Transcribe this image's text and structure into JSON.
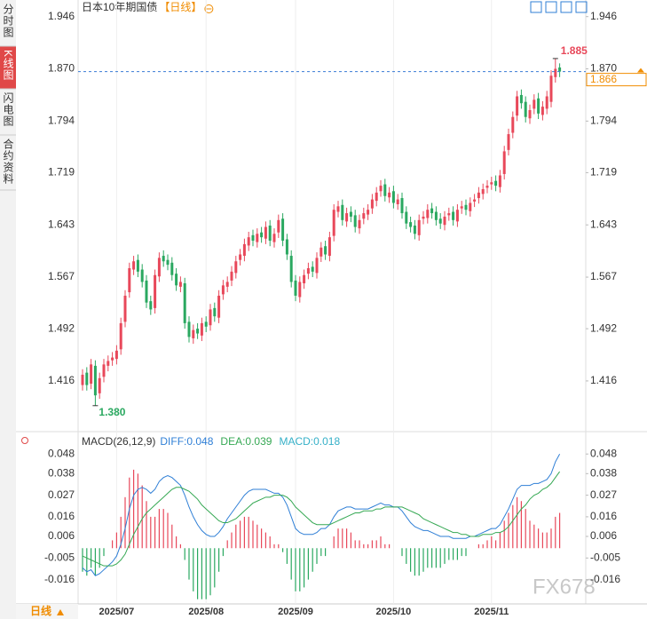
{
  "sidebar": {
    "tabs": [
      "分时图",
      "K线图",
      "闪电图",
      "合约资料"
    ]
  },
  "footer": {
    "period": "日线"
  },
  "watermark": "FX678",
  "chart_data": [
    {
      "type": "candlestick",
      "title": "日本10年期国债",
      "period": "【日线】",
      "categories": [
        null,
        null,
        null,
        null,
        null,
        null,
        null,
        null,
        "2025/07",
        null,
        null,
        null,
        null,
        null,
        null,
        null,
        null,
        null,
        null,
        null,
        null,
        null,
        null,
        null,
        null,
        null,
        null,
        null,
        null,
        "2025/08",
        null,
        null,
        null,
        null,
        null,
        null,
        null,
        null,
        null,
        null,
        null,
        null,
        null,
        null,
        null,
        null,
        null,
        null,
        null,
        null,
        "2025/09",
        null,
        null,
        null,
        null,
        null,
        null,
        null,
        null,
        null,
        null,
        null,
        null,
        null,
        null,
        null,
        null,
        null,
        null,
        null,
        null,
        null,
        null,
        "2025/10",
        null,
        null,
        null,
        null,
        null,
        null,
        null,
        null,
        null,
        null,
        null,
        null,
        null,
        null,
        null,
        null,
        null,
        null,
        null,
        null,
        null,
        null,
        "2025/11",
        null,
        null,
        null,
        null,
        null,
        null,
        null,
        null,
        null,
        null,
        null,
        null,
        null,
        null,
        null,
        null
      ],
      "open": [
        1.41,
        1.428,
        1.412,
        1.438,
        1.398,
        1.422,
        1.438,
        1.446,
        1.448,
        1.462,
        1.502,
        1.545,
        1.578,
        1.592,
        1.578,
        1.562,
        1.532,
        1.522,
        1.568,
        1.598,
        1.592,
        1.588,
        1.572,
        1.553,
        1.558,
        1.502,
        1.478,
        1.492,
        1.482,
        1.502,
        1.497,
        1.522,
        1.508,
        1.542,
        1.553,
        1.562,
        1.573,
        1.592,
        1.598,
        1.613,
        1.628,
        1.618,
        1.632,
        1.623,
        1.642,
        1.618,
        1.632,
        1.652,
        1.622,
        1.598,
        1.562,
        1.538,
        1.558,
        1.572,
        1.582,
        1.573,
        1.597,
        1.612,
        1.598,
        1.627,
        1.662,
        1.672,
        1.648,
        1.662,
        1.657,
        1.638,
        1.652,
        1.658,
        1.667,
        1.678,
        1.692,
        1.702,
        1.683,
        1.692,
        1.673,
        1.682,
        1.662,
        1.647,
        1.642,
        1.628,
        1.652,
        1.653,
        1.667,
        1.662,
        1.652,
        1.643,
        1.657,
        1.662,
        1.648,
        1.667,
        1.672,
        1.663,
        1.677,
        1.682,
        1.688,
        1.697,
        1.702,
        1.707,
        1.698,
        1.717,
        1.752,
        1.777,
        1.802,
        1.832,
        1.822,
        1.798,
        1.812,
        1.827,
        1.803,
        1.812,
        1.822,
        1.858,
        1.872
      ],
      "high": [
        1.433,
        1.436,
        1.448,
        1.446,
        1.428,
        1.448,
        1.453,
        1.458,
        1.468,
        1.508,
        1.548,
        1.588,
        1.598,
        1.6,
        1.586,
        1.57,
        1.54,
        1.578,
        1.603,
        1.606,
        1.6,
        1.596,
        1.58,
        1.568,
        1.566,
        1.51,
        1.498,
        1.5,
        1.508,
        1.51,
        1.528,
        1.53,
        1.548,
        1.563,
        1.568,
        1.583,
        1.598,
        1.608,
        1.623,
        1.633,
        1.636,
        1.638,
        1.64,
        1.648,
        1.65,
        1.638,
        1.658,
        1.66,
        1.63,
        1.606,
        1.57,
        1.568,
        1.578,
        1.588,
        1.59,
        1.603,
        1.618,
        1.62,
        1.633,
        1.673,
        1.678,
        1.68,
        1.668,
        1.67,
        1.665,
        1.658,
        1.668,
        1.673,
        1.688,
        1.698,
        1.708,
        1.71,
        1.698,
        1.7,
        1.688,
        1.69,
        1.67,
        1.655,
        1.65,
        1.658,
        1.663,
        1.673,
        1.675,
        1.67,
        1.66,
        1.663,
        1.668,
        1.67,
        1.673,
        1.678,
        1.68,
        1.683,
        1.688,
        1.698,
        1.703,
        1.708,
        1.713,
        1.715,
        1.723,
        1.758,
        1.783,
        1.808,
        1.838,
        1.84,
        1.83,
        1.818,
        1.833,
        1.835,
        1.823,
        1.838,
        1.868,
        1.885,
        1.878
      ],
      "low": [
        1.402,
        1.402,
        1.404,
        1.38,
        1.39,
        1.414,
        1.43,
        1.438,
        1.44,
        1.454,
        1.494,
        1.537,
        1.57,
        1.567,
        1.552,
        1.522,
        1.512,
        1.514,
        1.56,
        1.582,
        1.577,
        1.562,
        1.547,
        1.545,
        1.492,
        1.472,
        1.47,
        1.477,
        1.474,
        1.487,
        1.489,
        1.502,
        1.5,
        1.534,
        1.545,
        1.554,
        1.565,
        1.584,
        1.59,
        1.605,
        1.612,
        1.61,
        1.617,
        1.615,
        1.612,
        1.61,
        1.624,
        1.612,
        1.592,
        1.552,
        1.532,
        1.53,
        1.55,
        1.564,
        1.567,
        1.565,
        1.589,
        1.592,
        1.59,
        1.619,
        1.654,
        1.642,
        1.64,
        1.647,
        1.632,
        1.63,
        1.644,
        1.65,
        1.659,
        1.67,
        1.684,
        1.677,
        1.675,
        1.667,
        1.665,
        1.652,
        1.637,
        1.632,
        1.622,
        1.62,
        1.644,
        1.645,
        1.652,
        1.642,
        1.637,
        1.635,
        1.649,
        1.642,
        1.64,
        1.659,
        1.657,
        1.655,
        1.669,
        1.674,
        1.68,
        1.689,
        1.694,
        1.692,
        1.69,
        1.709,
        1.744,
        1.769,
        1.794,
        1.812,
        1.792,
        1.79,
        1.804,
        1.797,
        1.795,
        1.804,
        1.814,
        1.85,
        1.858
      ],
      "close": [
        1.425,
        1.41,
        1.44,
        1.395,
        1.42,
        1.44,
        1.445,
        1.45,
        1.46,
        1.5,
        1.54,
        1.58,
        1.59,
        1.575,
        1.56,
        1.53,
        1.52,
        1.57,
        1.595,
        1.59,
        1.585,
        1.57,
        1.555,
        1.56,
        1.5,
        1.48,
        1.49,
        1.485,
        1.5,
        1.495,
        1.52,
        1.51,
        1.54,
        1.555,
        1.56,
        1.575,
        1.59,
        1.6,
        1.615,
        1.625,
        1.62,
        1.63,
        1.625,
        1.64,
        1.62,
        1.63,
        1.65,
        1.62,
        1.6,
        1.56,
        1.54,
        1.56,
        1.57,
        1.58,
        1.575,
        1.595,
        1.61,
        1.6,
        1.625,
        1.665,
        1.67,
        1.65,
        1.66,
        1.655,
        1.64,
        1.65,
        1.66,
        1.665,
        1.68,
        1.69,
        1.7,
        1.685,
        1.69,
        1.675,
        1.68,
        1.66,
        1.645,
        1.64,
        1.63,
        1.65,
        1.655,
        1.665,
        1.66,
        1.65,
        1.645,
        1.655,
        1.66,
        1.65,
        1.665,
        1.67,
        1.665,
        1.675,
        1.68,
        1.69,
        1.695,
        1.7,
        1.705,
        1.7,
        1.715,
        1.75,
        1.775,
        1.8,
        1.83,
        1.82,
        1.8,
        1.81,
        1.825,
        1.805,
        1.815,
        1.83,
        1.86,
        1.87,
        1.866
      ],
      "up_color": "#e8485a",
      "down_color": "#2aa860",
      "ylim": [
        1.35,
        1.965
      ],
      "yticks": [
        1.946,
        {
          "value": 1.87,
          "label": "1.870"
        },
        1.794,
        1.719,
        1.643,
        1.567,
        1.492,
        1.416
      ],
      "last_price": 1.866,
      "last_color": "#f08c00",
      "last_line_color": "#3a7bd5",
      "max_label": {
        "value": 1.885,
        "label": "1.885"
      },
      "min_label": {
        "value": 1.38,
        "label": "1.380"
      }
    },
    {
      "type": "macd",
      "title": "MACD(26,12,9)",
      "series": [
        {
          "name": "DIFF:0.048",
          "color": "#2f7fd6",
          "values": [
            -0.01,
            -0.012,
            -0.011,
            -0.014,
            -0.013,
            -0.011,
            -0.009,
            -0.007,
            -0.004,
            0.002,
            0.01,
            0.02,
            0.027,
            0.03,
            0.031,
            0.03,
            0.028,
            0.03,
            0.034,
            0.036,
            0.037,
            0.036,
            0.034,
            0.032,
            0.027,
            0.021,
            0.016,
            0.012,
            0.009,
            0.007,
            0.006,
            0.006,
            0.008,
            0.011,
            0.015,
            0.018,
            0.021,
            0.024,
            0.027,
            0.029,
            0.03,
            0.03,
            0.03,
            0.03,
            0.029,
            0.028,
            0.028,
            0.026,
            0.022,
            0.016,
            0.01,
            0.008,
            0.007,
            0.007,
            0.007,
            0.008,
            0.01,
            0.01,
            0.012,
            0.016,
            0.019,
            0.02,
            0.021,
            0.021,
            0.02,
            0.02,
            0.02,
            0.02,
            0.021,
            0.022,
            0.023,
            0.022,
            0.022,
            0.021,
            0.021,
            0.019,
            0.016,
            0.013,
            0.011,
            0.01,
            0.009,
            0.009,
            0.008,
            0.007,
            0.006,
            0.006,
            0.006,
            0.005,
            0.005,
            0.005,
            0.005,
            0.006,
            0.006,
            0.007,
            0.008,
            0.009,
            0.01,
            0.01,
            0.012,
            0.016,
            0.02,
            0.025,
            0.03,
            0.032,
            0.032,
            0.032,
            0.033,
            0.033,
            0.034,
            0.035,
            0.038,
            0.044,
            0.048
          ]
        },
        {
          "name": "DEA:0.039",
          "color": "#35a853",
          "values": [
            -0.004,
            -0.005,
            -0.006,
            -0.007,
            -0.008,
            -0.009,
            -0.009,
            -0.009,
            -0.008,
            -0.006,
            -0.003,
            0.002,
            0.007,
            0.011,
            0.015,
            0.018,
            0.02,
            0.022,
            0.024,
            0.026,
            0.028,
            0.03,
            0.031,
            0.031,
            0.03,
            0.029,
            0.027,
            0.025,
            0.022,
            0.02,
            0.018,
            0.016,
            0.014,
            0.013,
            0.013,
            0.014,
            0.015,
            0.017,
            0.019,
            0.021,
            0.023,
            0.024,
            0.025,
            0.026,
            0.026,
            0.027,
            0.027,
            0.027,
            0.026,
            0.024,
            0.021,
            0.019,
            0.017,
            0.015,
            0.013,
            0.012,
            0.012,
            0.012,
            0.012,
            0.013,
            0.014,
            0.015,
            0.016,
            0.017,
            0.018,
            0.018,
            0.019,
            0.019,
            0.019,
            0.02,
            0.02,
            0.021,
            0.021,
            0.021,
            0.021,
            0.021,
            0.02,
            0.019,
            0.018,
            0.017,
            0.015,
            0.014,
            0.013,
            0.012,
            0.011,
            0.01,
            0.009,
            0.008,
            0.008,
            0.007,
            0.007,
            0.006,
            0.006,
            0.006,
            0.007,
            0.007,
            0.007,
            0.008,
            0.008,
            0.009,
            0.011,
            0.014,
            0.017,
            0.02,
            0.022,
            0.025,
            0.027,
            0.028,
            0.03,
            0.031,
            0.033,
            0.036,
            0.039
          ]
        },
        {
          "name": "MACD:0.018",
          "color": "#35b0c8",
          "type": "bar",
          "up_color": "#e8485a",
          "down_color": "#2aa860",
          "values": [
            -0.012,
            -0.014,
            -0.01,
            -0.014,
            -0.01,
            -0.004,
            0.0,
            0.004,
            0.008,
            0.016,
            0.026,
            0.036,
            0.04,
            0.038,
            0.032,
            0.024,
            0.016,
            0.016,
            0.02,
            0.02,
            0.018,
            0.012,
            0.006,
            0.002,
            -0.006,
            -0.016,
            -0.022,
            -0.026,
            -0.026,
            -0.026,
            -0.024,
            -0.02,
            -0.012,
            -0.004,
            0.004,
            0.008,
            0.012,
            0.014,
            0.016,
            0.016,
            0.014,
            0.012,
            0.01,
            0.008,
            0.006,
            0.002,
            0.002,
            -0.002,
            -0.008,
            -0.016,
            -0.022,
            -0.022,
            -0.02,
            -0.016,
            -0.012,
            -0.008,
            -0.004,
            -0.004,
            0.0,
            0.006,
            0.01,
            0.01,
            0.01,
            0.008,
            0.004,
            0.004,
            0.002,
            0.002,
            0.004,
            0.004,
            0.006,
            0.002,
            0.002,
            0.0,
            0.0,
            -0.004,
            -0.008,
            -0.012,
            -0.014,
            -0.014,
            -0.012,
            -0.01,
            -0.01,
            -0.01,
            -0.01,
            -0.008,
            -0.006,
            -0.006,
            -0.006,
            -0.004,
            -0.004,
            0.0,
            0.0,
            0.002,
            0.002,
            0.004,
            0.006,
            0.004,
            0.008,
            0.014,
            0.018,
            0.022,
            0.026,
            0.024,
            0.02,
            0.014,
            0.012,
            0.01,
            0.008,
            0.008,
            0.01,
            0.016,
            0.018
          ]
        }
      ],
      "ylim": [
        -0.0284,
        0.0567
      ],
      "yticks": [
        0.048,
        0.038,
        0.027,
        0.016,
        0.006,
        -0.005,
        -0.016
      ]
    }
  ]
}
